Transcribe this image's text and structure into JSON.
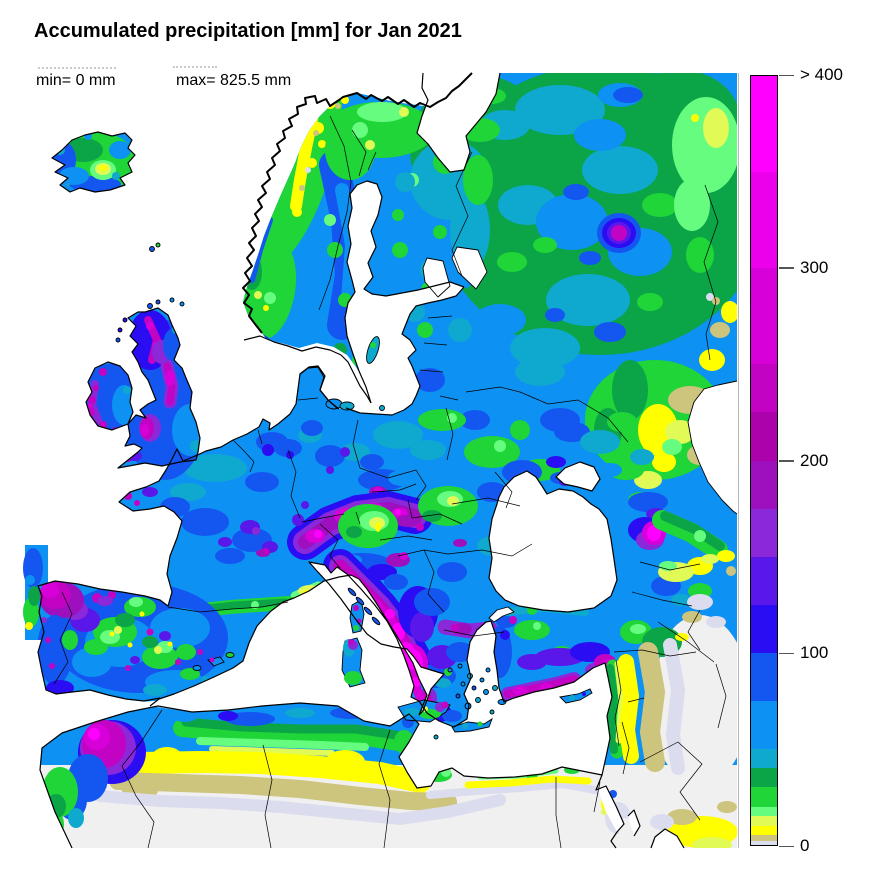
{
  "figure": {
    "title": "Accumulated precipitation [mm] for Jan 2021",
    "annotations": {
      "min": "min= 0 mm",
      "max": "max= 825.5 mm"
    }
  },
  "colorbar": {
    "units": "mm",
    "max_value": 400,
    "ticks": [
      {
        "value": 0,
        "label": "0"
      },
      {
        "value": 100,
        "label": "100"
      },
      {
        "value": 200,
        "label": "200"
      },
      {
        "value": 300,
        "label": "300"
      },
      {
        "value": 400,
        "label": "> 400"
      }
    ],
    "segments": [
      {
        "from": 0,
        "to": 2,
        "color_key": "p2"
      },
      {
        "from": 2,
        "to": 5,
        "color_key": "p5"
      },
      {
        "from": 5,
        "to": 10,
        "color_key": "p10"
      },
      {
        "from": 10,
        "to": 15,
        "color_key": "p15"
      },
      {
        "from": 15,
        "to": 20,
        "color_key": "p20"
      },
      {
        "from": 20,
        "to": 30,
        "color_key": "p30"
      },
      {
        "from": 30,
        "to": 40,
        "color_key": "p40"
      },
      {
        "from": 40,
        "to": 50,
        "color_key": "p50"
      },
      {
        "from": 50,
        "to": 75,
        "color_key": "p75"
      },
      {
        "from": 75,
        "to": 100,
        "color_key": "p100"
      },
      {
        "from": 100,
        "to": 125,
        "color_key": "p125"
      },
      {
        "from": 125,
        "to": 150,
        "color_key": "p150"
      },
      {
        "from": 150,
        "to": 175,
        "color_key": "p175"
      },
      {
        "from": 175,
        "to": 200,
        "color_key": "p200"
      },
      {
        "from": 200,
        "to": 225,
        "color_key": "p225"
      },
      {
        "from": 225,
        "to": 250,
        "color_key": "p250"
      },
      {
        "from": 250,
        "to": 300,
        "color_key": "p300"
      },
      {
        "from": 300,
        "to": 350,
        "color_key": "p350"
      },
      {
        "from": 350,
        "to": 400,
        "color_key": "p400"
      }
    ]
  },
  "palette": {
    "p0": "#f0f0f0",
    "p2": "#dcdcef",
    "p5": "#cdc47e",
    "p10": "#ffff00",
    "p15": "#e2fa55",
    "p20": "#66fc80",
    "p30": "#1fd537",
    "p40": "#0ba447",
    "p50": "#0fa8cf",
    "p75": "#0d91f2",
    "p100": "#1457f0",
    "p125": "#2a0df2",
    "p150": "#5a17ea",
    "p175": "#8a28da",
    "p200": "#9e0fbe",
    "p225": "#ab02ab",
    "p250": "#c303c3",
    "p300": "#d800d8",
    "p350": "#ec00ec",
    "p400": "#ff00ff",
    "sea": "#ffffff",
    "coast": "#000000",
    "border": "#000000",
    "frame": "#b9b9b9"
  },
  "chart_data": {
    "type": "heatmap",
    "title": "Accumulated precipitation [mm] for Jan 2021",
    "field": "accumulated precipitation",
    "period": "Jan 2021",
    "units": "mm",
    "min_value": 0,
    "max_value": 825.5,
    "legend_position": "right",
    "scale_levels_mm": [
      0,
      2,
      5,
      10,
      15,
      20,
      30,
      40,
      50,
      75,
      100,
      125,
      150,
      175,
      200,
      225,
      250,
      300,
      350,
      400
    ],
    "scale_colors": [
      "#dcdcef",
      "#cdc47e",
      "#ffff00",
      "#e2fa55",
      "#66fc80",
      "#1fd537",
      "#0ba447",
      "#0fa8cf",
      "#0d91f2",
      "#1457f0",
      "#2a0df2",
      "#5a17ea",
      "#8a28da",
      "#9e0fbe",
      "#ab02ab",
      "#c303c3",
      "#d800d8",
      "#ec00ec",
      "#ff00ff"
    ],
    "extent": "Europe with North Africa, Iceland to Caspian Sea",
    "map_features": [
      {
        "area": "Iceland",
        "approx_mm": "20-100, dry yellow-green spot in south-centre"
      },
      {
        "area": "Norway west coast",
        "approx_mm": "5-20 (yellow band along mountains)"
      },
      {
        "area": "Scandinavia interior",
        "approx_mm": "20-100"
      },
      {
        "area": "British Isles west",
        "approx_mm": "150-250 (magenta ridges)"
      },
      {
        "area": "France",
        "approx_mm": "50-150"
      },
      {
        "area": "Alps",
        "approx_mm": "175-400 (magenta band)"
      },
      {
        "area": "Dinaric Alps / Albania / W Greece",
        "approx_mm": "250->400 (bright magenta)"
      },
      {
        "area": "Hungary / Transylvania",
        "approx_mm": "10-30 (green/yellow-green)"
      },
      {
        "area": "Iberia",
        "approx_mm": "20-100 with magenta NW corner (Galicia)"
      },
      {
        "area": "Apennines, Italy",
        "approx_mm": "200-300"
      },
      {
        "area": "Eastern Europe / Russia",
        "approx_mm": "30-100 (green-blue)"
      },
      {
        "area": "NE corner / Volga-Caspian east edge",
        "approx_mm": "0-15 (yellow/tan)"
      },
      {
        "area": "Turkey south coast",
        "approx_mm": "200-300"
      },
      {
        "area": "Caucasus (Georgia)",
        "approx_mm": "up to >400 (magenta spot)"
      },
      {
        "area": "Morocco Atlas",
        "approx_mm": "150-400"
      },
      {
        "area": "North Africa coastal strip",
        "approx_mm": "2-75 banded"
      },
      {
        "area": "Sahara / Middle East interior",
        "approx_mm": "0-2 (pale grey/lavender)"
      },
      {
        "area": "Seas (Atlantic, Mediterranean, Baltic, Black, Caspian)",
        "approx_mm": "masked white"
      }
    ]
  }
}
